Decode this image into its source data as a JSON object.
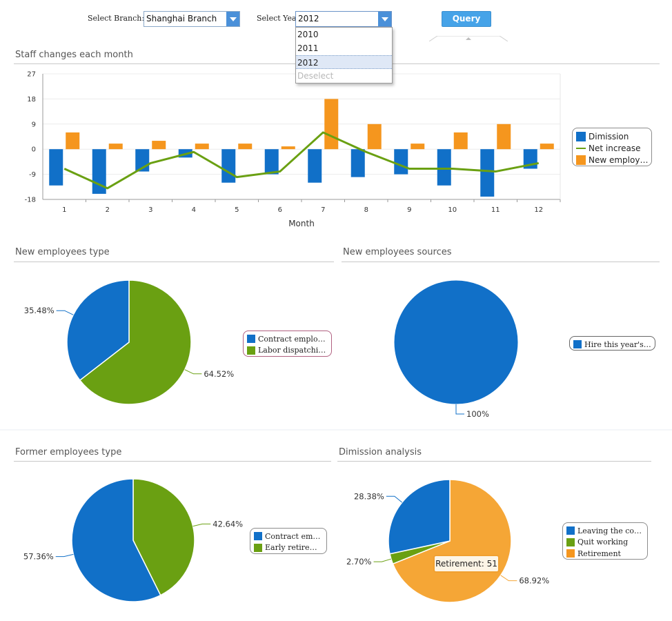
{
  "filters": {
    "branch_label": "Select Branch:",
    "branch_value": "Shanghai Branch",
    "year_label": "Select Year:",
    "year_value": "2012",
    "year_options": [
      "2010",
      "2011",
      "2012",
      "Deselect"
    ],
    "query_button": "Query"
  },
  "sections": {
    "staff_changes": "Staff changes each month",
    "new_type": "New employees type",
    "new_sources": "New employees sources",
    "former_type": "Former employees type",
    "dimission": "Dimission analysis"
  },
  "colors": {
    "blue": "#1170c8",
    "green": "#6aa012",
    "orange": "#f5961e",
    "line_green": "#6aa012",
    "pie_orange": "#f5a636"
  },
  "chart_data": [
    {
      "type": "bar",
      "title": "Staff changes each month",
      "xlabel": "Month",
      "ylabel": "",
      "categories": [
        "1",
        "2",
        "3",
        "4",
        "5",
        "6",
        "7",
        "8",
        "9",
        "10",
        "11",
        "12"
      ],
      "ylim": [
        -18,
        27
      ],
      "yticks": [
        "27",
        "18",
        "9",
        "0",
        "-9",
        "-18"
      ],
      "grid": true,
      "legend_position": "right",
      "series": [
        {
          "name": "Dimission",
          "type": "bar",
          "values": [
            -13,
            -16,
            -8,
            -3,
            -12,
            -9,
            -12,
            -10,
            -9,
            -13,
            -17,
            -7
          ]
        },
        {
          "name": "Net increase",
          "type": "line",
          "values": [
            -7,
            -14,
            -5,
            -1,
            -10,
            -8,
            6,
            -1,
            -7,
            -7,
            -8,
            -5
          ]
        },
        {
          "name": "New employees",
          "type": "bar",
          "values": [
            6,
            2,
            3,
            2,
            2,
            1,
            18,
            9,
            2,
            6,
            9,
            2
          ]
        }
      ]
    },
    {
      "type": "pie",
      "title": "New employees type",
      "slices": [
        {
          "name": "Contract employee",
          "value": 35.48,
          "label": "35.48%"
        },
        {
          "name": "Labor dispatching b...",
          "value": 64.52,
          "label": "64.52%"
        }
      ]
    },
    {
      "type": "pie",
      "title": "New employees sources",
      "slices": [
        {
          "name": "Hire this year's gra...",
          "value": 100,
          "label": "100%"
        }
      ]
    },
    {
      "type": "pie",
      "title": "Former employees type",
      "slices": [
        {
          "name": "Contract employee",
          "value": 57.36,
          "label": "57.36%"
        },
        {
          "name": "Early retirement",
          "value": 42.64,
          "label": "42.64%"
        }
      ]
    },
    {
      "type": "pie",
      "title": "Dimission analysis",
      "slices": [
        {
          "name": "Leaving the compa...",
          "value": 28.38,
          "label": "28.38%"
        },
        {
          "name": "Quit working",
          "value": 2.7,
          "label": "2.70%"
        },
        {
          "name": "Retirement",
          "value": 68.92,
          "label": "68.92%"
        }
      ],
      "tooltip": "Retirement: 51"
    }
  ]
}
